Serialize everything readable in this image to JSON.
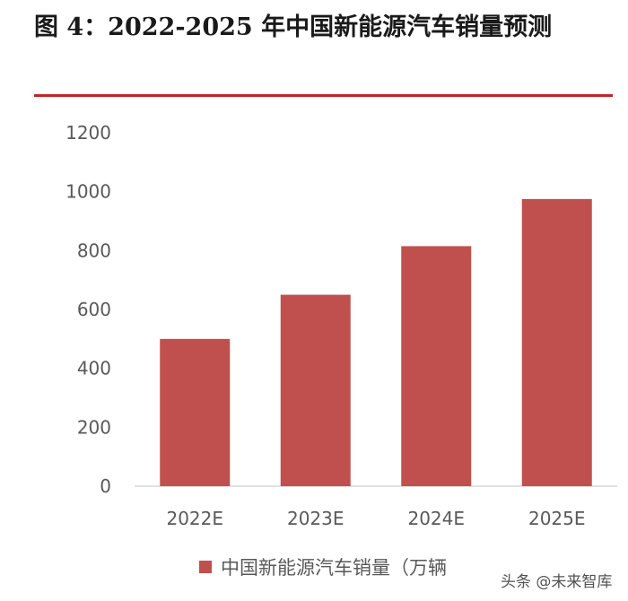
{
  "chart_data": {
    "type": "bar",
    "title": "图 4：2022-2025 年中国新能源汽车销量预测",
    "categories": [
      "2022E",
      "2023E",
      "2024E",
      "2025E"
    ],
    "series": [
      {
        "name": "中国新能源汽车销量（万辆",
        "values": [
          500,
          650,
          815,
          975
        ]
      }
    ],
    "yticks": [
      "0",
      "200",
      "400",
      "600",
      "800",
      "1000",
      "1200"
    ],
    "ylim": [
      0,
      1200
    ],
    "grid": false,
    "legend": "bottom",
    "bar_color": "#c0504d",
    "accent_color": "#c0252a"
  },
  "watermark": "头条 @未来智库"
}
